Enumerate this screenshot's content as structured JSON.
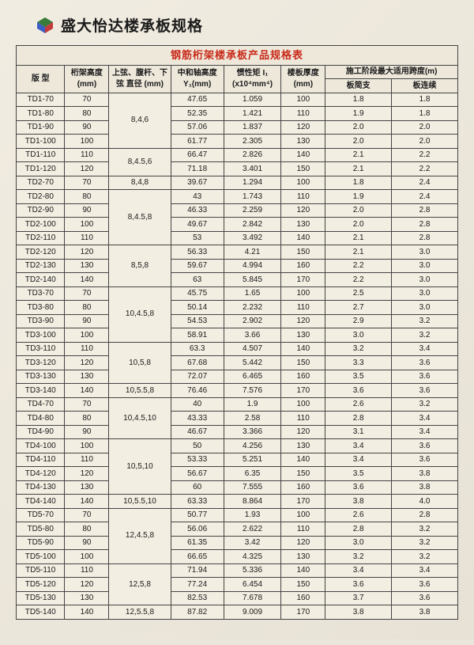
{
  "page": {
    "title": "盛大怡达楼承板规格",
    "table_caption": "钢筋桁架楼承板产品规格表",
    "headers": {
      "model": "版 型",
      "truss_height": "桁架高度 (mm)",
      "chord_dia": "上弦、腹杆、下弦 直径 (mm)",
      "neutral_axis": "中和轴高度 Y₁(mm)",
      "inertia": "惯性矩 I₁ (x10⁴mm⁴)",
      "slab_thk": "楼板厚度 (mm)",
      "span_group": "施工阶段最大适用跨度(m)",
      "span_simple": "板简支",
      "span_cont": "板连续"
    }
  },
  "rows": [
    {
      "model": "TD1-70",
      "h": "70",
      "dia": "8,4,6",
      "dia_span": 4,
      "y": "47.65",
      "i": "1.059",
      "thk": "100",
      "s1": "1.8",
      "s2": "1.8"
    },
    {
      "model": "TD1-80",
      "h": "80",
      "y": "52.35",
      "i": "1.421",
      "thk": "110",
      "s1": "1.9",
      "s2": "1.8"
    },
    {
      "model": "TD1-90",
      "h": "90",
      "y": "57.06",
      "i": "1.837",
      "thk": "120",
      "s1": "2.0",
      "s2": "2.0"
    },
    {
      "model": "TD1-100",
      "h": "100",
      "y": "61.77",
      "i": "2.305",
      "thk": "130",
      "s1": "2.0",
      "s2": "2.0"
    },
    {
      "model": "TD1-110",
      "h": "110",
      "dia": "8,4.5,6",
      "dia_span": 2,
      "y": "66.47",
      "i": "2.826",
      "thk": "140",
      "s1": "2.1",
      "s2": "2.2"
    },
    {
      "model": "TD1-120",
      "h": "120",
      "y": "71.18",
      "i": "3.401",
      "thk": "150",
      "s1": "2.1",
      "s2": "2.2"
    },
    {
      "model": "TD2-70",
      "h": "70",
      "dia": "8,4,8",
      "dia_span": 1,
      "y": "39.67",
      "i": "1.294",
      "thk": "100",
      "s1": "1.8",
      "s2": "2.4"
    },
    {
      "model": "TD2-80",
      "h": "80",
      "dia": "8,4.5,8",
      "dia_span": 4,
      "y": "43",
      "i": "1.743",
      "thk": "110",
      "s1": "1.9",
      "s2": "2.4"
    },
    {
      "model": "TD2-90",
      "h": "90",
      "y": "46.33",
      "i": "2.259",
      "thk": "120",
      "s1": "2.0",
      "s2": "2.8"
    },
    {
      "model": "TD2-100",
      "h": "100",
      "y": "49.67",
      "i": "2.842",
      "thk": "130",
      "s1": "2.0",
      "s2": "2.8"
    },
    {
      "model": "TD2-110",
      "h": "110",
      "y": "53",
      "i": "3.492",
      "thk": "140",
      "s1": "2.1",
      "s2": "2.8"
    },
    {
      "model": "TD2-120",
      "h": "120",
      "dia": "8,5,8",
      "dia_span": 3,
      "y": "56.33",
      "i": "4.21",
      "thk": "150",
      "s1": "2.1",
      "s2": "3.0"
    },
    {
      "model": "TD2-130",
      "h": "130",
      "y": "59.67",
      "i": "4.994",
      "thk": "160",
      "s1": "2.2",
      "s2": "3.0"
    },
    {
      "model": "TD2-140",
      "h": "140",
      "y": "63",
      "i": "5.845",
      "thk": "170",
      "s1": "2.2",
      "s2": "3.0"
    },
    {
      "model": "TD3-70",
      "h": "70",
      "dia": "10,4.5,8",
      "dia_span": 4,
      "y": "45.75",
      "i": "1.65",
      "thk": "100",
      "s1": "2.5",
      "s2": "3.0"
    },
    {
      "model": "TD3-80",
      "h": "80",
      "y": "50.14",
      "i": "2.232",
      "thk": "110",
      "s1": "2.7",
      "s2": "3.0"
    },
    {
      "model": "TD3-90",
      "h": "90",
      "y": "54.53",
      "i": "2.902",
      "thk": "120",
      "s1": "2.9",
      "s2": "3.2"
    },
    {
      "model": "TD3-100",
      "h": "100",
      "y": "58.91",
      "i": "3.66",
      "thk": "130",
      "s1": "3.0",
      "s2": "3.2"
    },
    {
      "model": "TD3-110",
      "h": "110",
      "dia": "10,5,8",
      "dia_span": 3,
      "y": "63.3",
      "i": "4.507",
      "thk": "140",
      "s1": "3.2",
      "s2": "3.4"
    },
    {
      "model": "TD3-120",
      "h": "120",
      "y": "67.68",
      "i": "5.442",
      "thk": "150",
      "s1": "3.3",
      "s2": "3.6"
    },
    {
      "model": "TD3-130",
      "h": "130",
      "y": "72.07",
      "i": "6.465",
      "thk": "160",
      "s1": "3.5",
      "s2": "3.6"
    },
    {
      "model": "TD3-140",
      "h": "140",
      "dia": "10,5.5,8",
      "dia_span": 1,
      "y": "76.46",
      "i": "7.576",
      "thk": "170",
      "s1": "3.6",
      "s2": "3.6"
    },
    {
      "model": "TD4-70",
      "h": "70",
      "dia": "10,4.5,10",
      "dia_span": 3,
      "y": "40",
      "i": "1.9",
      "thk": "100",
      "s1": "2.6",
      "s2": "3.2"
    },
    {
      "model": "TD4-80",
      "h": "80",
      "y": "43.33",
      "i": "2.58",
      "thk": "110",
      "s1": "2.8",
      "s2": "3.4"
    },
    {
      "model": "TD4-90",
      "h": "90",
      "y": "46.67",
      "i": "3.366",
      "thk": "120",
      "s1": "3.1",
      "s2": "3.4"
    },
    {
      "model": "TD4-100",
      "h": "100",
      "dia": "10,5,10",
      "dia_span": 4,
      "y": "50",
      "i": "4.256",
      "thk": "130",
      "s1": "3.4",
      "s2": "3.6"
    },
    {
      "model": "TD4-110",
      "h": "110",
      "y": "53.33",
      "i": "5.251",
      "thk": "140",
      "s1": "3.4",
      "s2": "3.6"
    },
    {
      "model": "TD4-120",
      "h": "120",
      "y": "56.67",
      "i": "6.35",
      "thk": "150",
      "s1": "3.5",
      "s2": "3.8"
    },
    {
      "model": "TD4-130",
      "h": "130",
      "y": "60",
      "i": "7.555",
      "thk": "160",
      "s1": "3.6",
      "s2": "3.8"
    },
    {
      "model": "TD4-140",
      "h": "140",
      "dia": "10,5.5,10",
      "dia_span": 1,
      "y": "63.33",
      "i": "8.864",
      "thk": "170",
      "s1": "3.8",
      "s2": "4.0"
    },
    {
      "model": "TD5-70",
      "h": "70",
      "dia": "12,4.5,8",
      "dia_span": 4,
      "y": "50.77",
      "i": "1.93",
      "thk": "100",
      "s1": "2.6",
      "s2": "2.8"
    },
    {
      "model": "TD5-80",
      "h": "80",
      "y": "56.06",
      "i": "2.622",
      "thk": "110",
      "s1": "2.8",
      "s2": "3.2"
    },
    {
      "model": "TD5-90",
      "h": "90",
      "y": "61.35",
      "i": "3.42",
      "thk": "120",
      "s1": "3.0",
      "s2": "3.2"
    },
    {
      "model": "TD5-100",
      "h": "100",
      "y": "66.65",
      "i": "4.325",
      "thk": "130",
      "s1": "3.2",
      "s2": "3.2"
    },
    {
      "model": "TD5-110",
      "h": "110",
      "dia": "12,5,8",
      "dia_span": 3,
      "y": "71.94",
      "i": "5.336",
      "thk": "140",
      "s1": "3.4",
      "s2": "3.4"
    },
    {
      "model": "TD5-120",
      "h": "120",
      "y": "77.24",
      "i": "6.454",
      "thk": "150",
      "s1": "3.6",
      "s2": "3.6"
    },
    {
      "model": "TD5-130",
      "h": "130",
      "y": "82.53",
      "i": "7.678",
      "thk": "160",
      "s1": "3.7",
      "s2": "3.6"
    },
    {
      "model": "TD5-140",
      "h": "140",
      "dia": "12,5.5,8",
      "dia_span": 1,
      "y": "87.82",
      "i": "9.009",
      "thk": "170",
      "s1": "3.8",
      "s2": "3.8"
    }
  ]
}
